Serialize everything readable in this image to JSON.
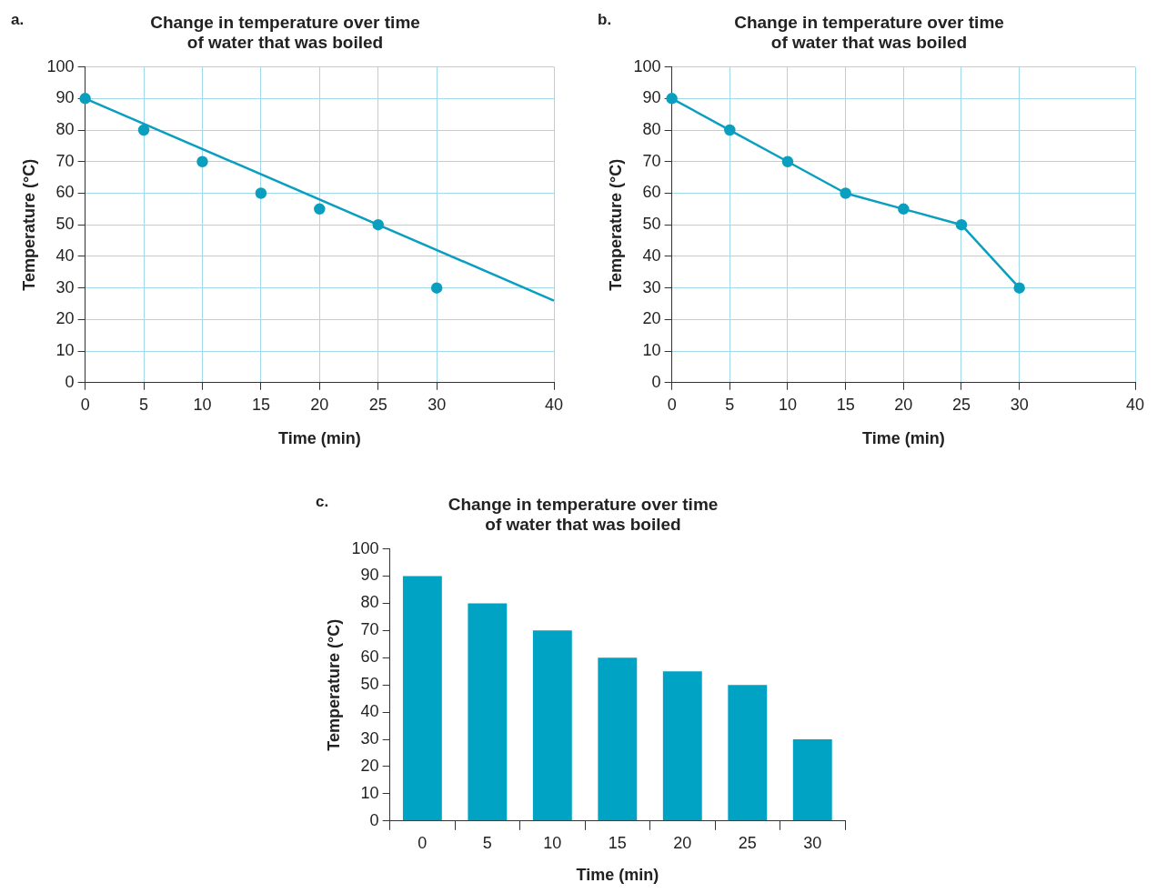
{
  "chart_data": [
    {
      "type": "scatter",
      "title": "Change in temperature over time of water that was boiled",
      "xlabel": "Time (min)",
      "ylabel": "Temperature (°C)",
      "annotations": [
        "a."
      ],
      "xlim": [
        0,
        40
      ],
      "xticks": [
        0,
        5,
        10,
        15,
        20,
        25,
        30,
        40
      ],
      "ylim": [
        0,
        100
      ],
      "yticks": [
        0,
        10,
        20,
        30,
        40,
        50,
        60,
        70,
        80,
        90,
        100
      ],
      "grid": true,
      "series": [
        {
          "type": "scatter",
          "marker": "circle",
          "color": "#0a9fbf",
          "x": [
            0,
            5,
            10,
            15,
            20,
            25,
            30
          ],
          "values": [
            90,
            80,
            70,
            60,
            55,
            50,
            30
          ]
        },
        {
          "type": "line",
          "marker": "none",
          "color": "#0a9fbf",
          "x": [
            0,
            40
          ],
          "values": [
            90,
            26
          ]
        }
      ]
    },
    {
      "type": "line",
      "title": "Change in temperature over time of water that was boiled",
      "xlabel": "Time (min)",
      "ylabel": "Temperature (°C)",
      "annotations": [
        "b."
      ],
      "xlim": [
        0,
        40
      ],
      "xticks": [
        0,
        5,
        10,
        15,
        20,
        25,
        30,
        40
      ],
      "ylim": [
        0,
        100
      ],
      "yticks": [
        0,
        10,
        20,
        30,
        40,
        50,
        60,
        70,
        80,
        90,
        100
      ],
      "grid": true,
      "marker": "circle",
      "series": [
        {
          "color": "#0a9fbf",
          "x": [
            0,
            5,
            10,
            15,
            20,
            25,
            30
          ],
          "values": [
            90,
            80,
            70,
            60,
            55,
            50,
            30
          ]
        }
      ]
    },
    {
      "type": "bar",
      "title": "Change in temperature over time of water that was boiled",
      "xlabel": "Time (min)",
      "ylabel": "Temperature (°C)",
      "annotations": [
        "c."
      ],
      "categories": [
        "0",
        "5",
        "10",
        "15",
        "20",
        "25",
        "30"
      ],
      "ylim": [
        0,
        100
      ],
      "yticks": [
        0,
        10,
        20,
        30,
        40,
        50,
        60,
        70,
        80,
        90,
        100
      ],
      "series": [
        {
          "color": "#00a3c4",
          "values": [
            90,
            80,
            70,
            60,
            55,
            50,
            30
          ]
        }
      ]
    }
  ]
}
